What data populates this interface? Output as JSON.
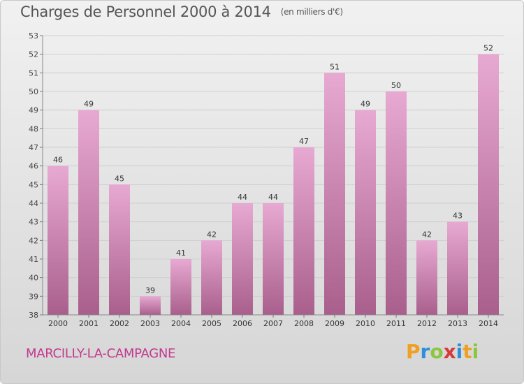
{
  "title": "Charges de Personnel 2000 à 2014",
  "subtitle": "(en milliers d'€)",
  "commune": "MARCILLY-LA-CAMPAGNE",
  "logo": {
    "letters": [
      "P",
      "r",
      "o",
      "x",
      "i",
      "t",
      "i"
    ],
    "colors": [
      "#f0a020",
      "#2f8fd8",
      "#8cc63f",
      "#d83a3a",
      "#2f8fd8",
      "#f0a020",
      "#8cc63f"
    ]
  },
  "colors": {
    "bar_light": "#e7a9d2",
    "bar_dark": "#a95f8c",
    "commune_text": "#c33a8e"
  },
  "chart_data": {
    "type": "bar",
    "categories": [
      "2000",
      "2001",
      "2002",
      "2003",
      "2004",
      "2005",
      "2006",
      "2007",
      "2008",
      "2009",
      "2010",
      "2011",
      "2012",
      "2013",
      "2014"
    ],
    "values": [
      46,
      49,
      45,
      39,
      41,
      42,
      44,
      44,
      47,
      51,
      49,
      50,
      42,
      43,
      52
    ],
    "ylim": [
      38,
      53
    ],
    "yticks": [
      38,
      39,
      40,
      41,
      42,
      43,
      44,
      45,
      46,
      47,
      48,
      49,
      50,
      51,
      52,
      53
    ],
    "grid": true
  }
}
